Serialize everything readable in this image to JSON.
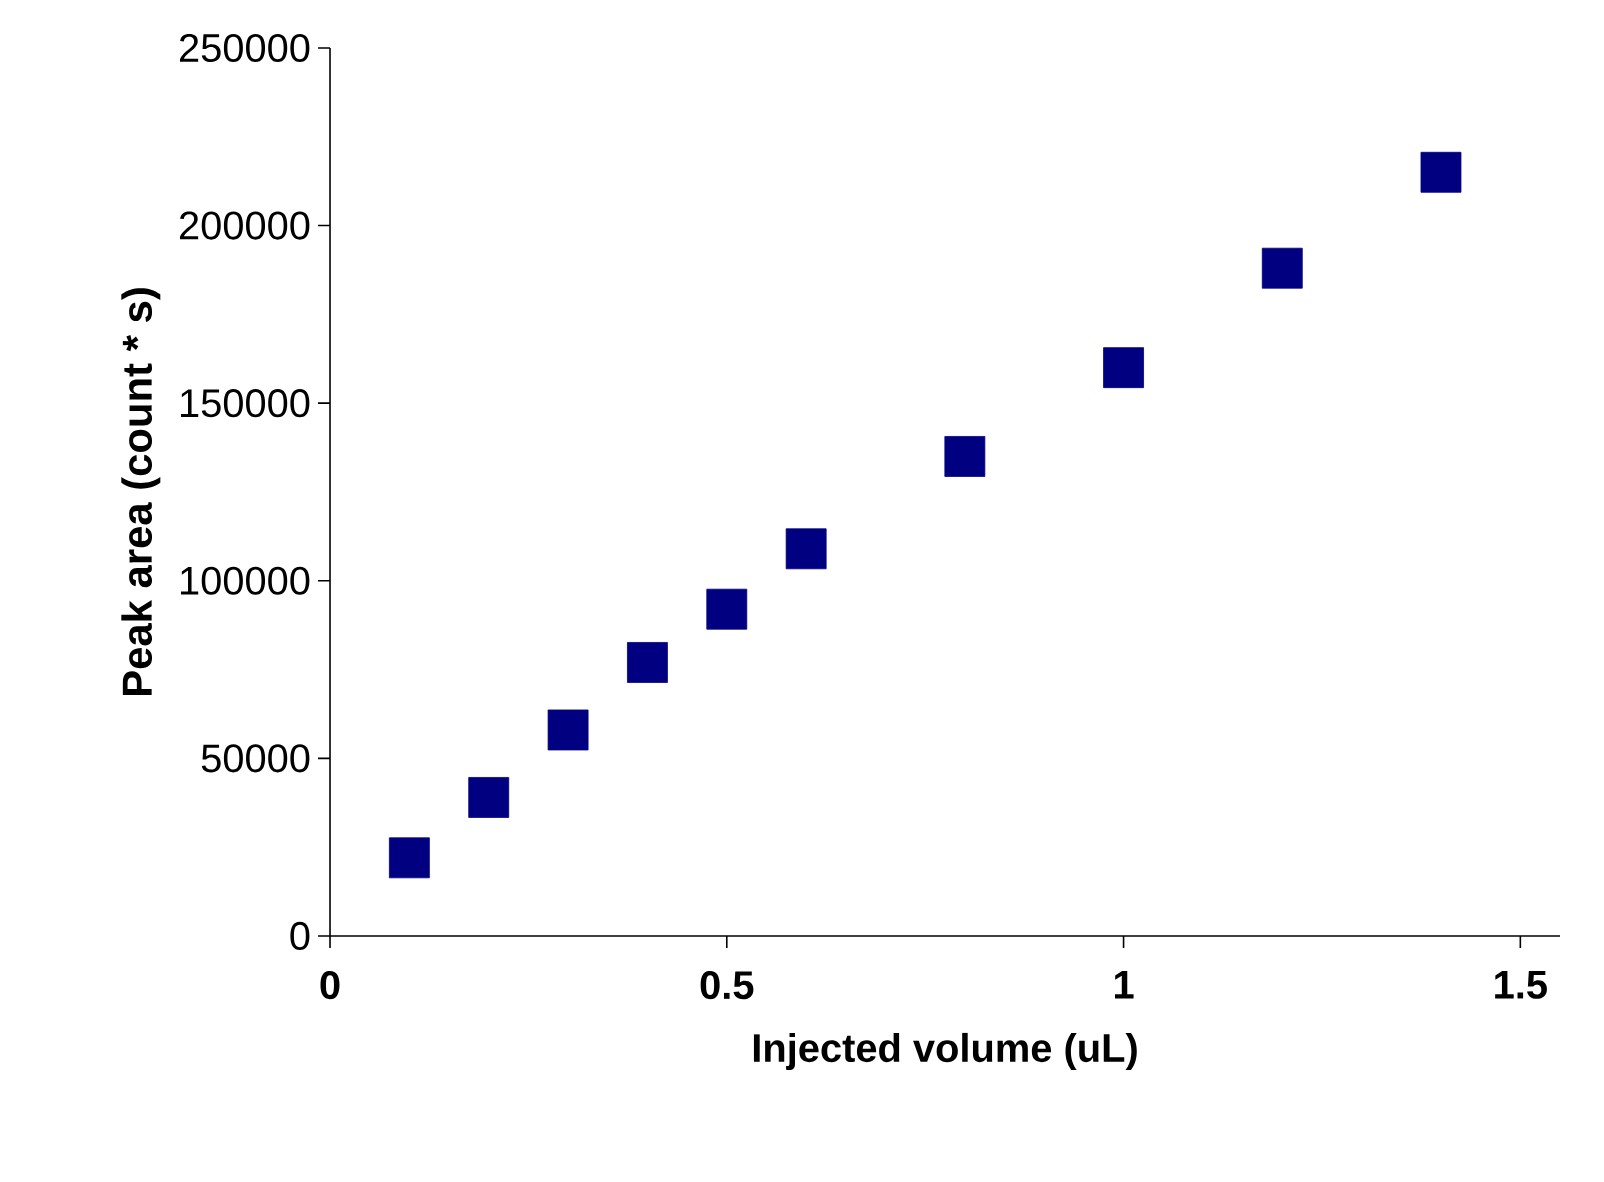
{
  "chart_data": {
    "type": "scatter",
    "xlabel": "Injected volume (uL)",
    "ylabel": "Peak area (count * s)",
    "x": [
      0.1,
      0.2,
      0.3,
      0.4,
      0.5,
      0.6,
      0.8,
      1.0,
      1.2,
      1.4
    ],
    "values": [
      22000,
      39000,
      58000,
      77000,
      92000,
      109000,
      135000,
      160000,
      188000,
      215000
    ],
    "color": "#000080",
    "marker": "square",
    "xlim": [
      0,
      1.55
    ],
    "ylim": [
      0,
      250000
    ],
    "xticks": [
      0,
      0.5,
      1,
      1.5
    ],
    "yticks": [
      0,
      50000,
      100000,
      150000,
      200000,
      250000
    ],
    "grid": false
  }
}
